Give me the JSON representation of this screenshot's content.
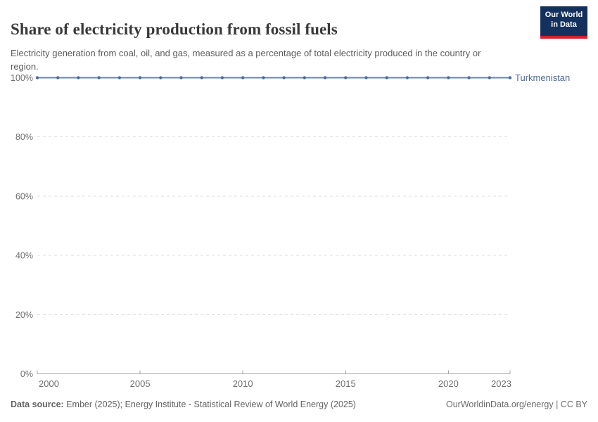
{
  "header": {
    "title": "Share of electricity production from fossil fuels",
    "subtitle": "Electricity generation from coal, oil, and gas, measured as a percentage of total electricity produced in the country or region.",
    "logo": {
      "line1": "Our World",
      "line2": "in Data"
    }
  },
  "chart_data": {
    "type": "line",
    "title": "Share of electricity production from fossil fuels",
    "x": [
      2000,
      2001,
      2002,
      2003,
      2004,
      2005,
      2006,
      2007,
      2008,
      2009,
      2010,
      2011,
      2012,
      2013,
      2014,
      2015,
      2016,
      2017,
      2018,
      2019,
      2020,
      2021,
      2022,
      2023
    ],
    "series": [
      {
        "name": "Turkmenistan",
        "values": [
          100,
          100,
          100,
          100,
          100,
          100,
          100,
          100,
          100,
          100,
          100,
          100,
          100,
          100,
          100,
          100,
          100,
          100,
          100,
          100,
          100,
          100,
          100,
          100
        ]
      }
    ],
    "xlabel": "",
    "ylabel": "",
    "xlim": [
      2000,
      2023
    ],
    "ylim": [
      0,
      100
    ],
    "xticks": [
      2000,
      2005,
      2010,
      2015,
      2020,
      2023
    ],
    "xtick_labels": [
      "2000",
      "2005",
      "2010",
      "2015",
      "2020",
      "2023"
    ],
    "yticks": [
      0,
      20,
      40,
      60,
      80,
      100
    ],
    "ytick_labels": [
      "0%",
      "20%",
      "40%",
      "60%",
      "80%",
      "100%"
    ],
    "grid": "horizontal-dashed",
    "legend_position": "end-of-line-label"
  },
  "footer": {
    "datasource_label": "Data source:",
    "datasource_text": " Ember (2025); Energy Institute - Statistical Review of World Energy (2025)",
    "credit": "OurWorldinData.org/energy | CC BY"
  },
  "colors": {
    "accent_blue": "#4c6a9c",
    "line_blue": "#6a84b1",
    "gridline": "#dcdcdc",
    "axis": "#a6a6a6",
    "tick_text": "#6e6e6e",
    "logo_navy": "#14315e",
    "logo_red": "#d1232a"
  }
}
